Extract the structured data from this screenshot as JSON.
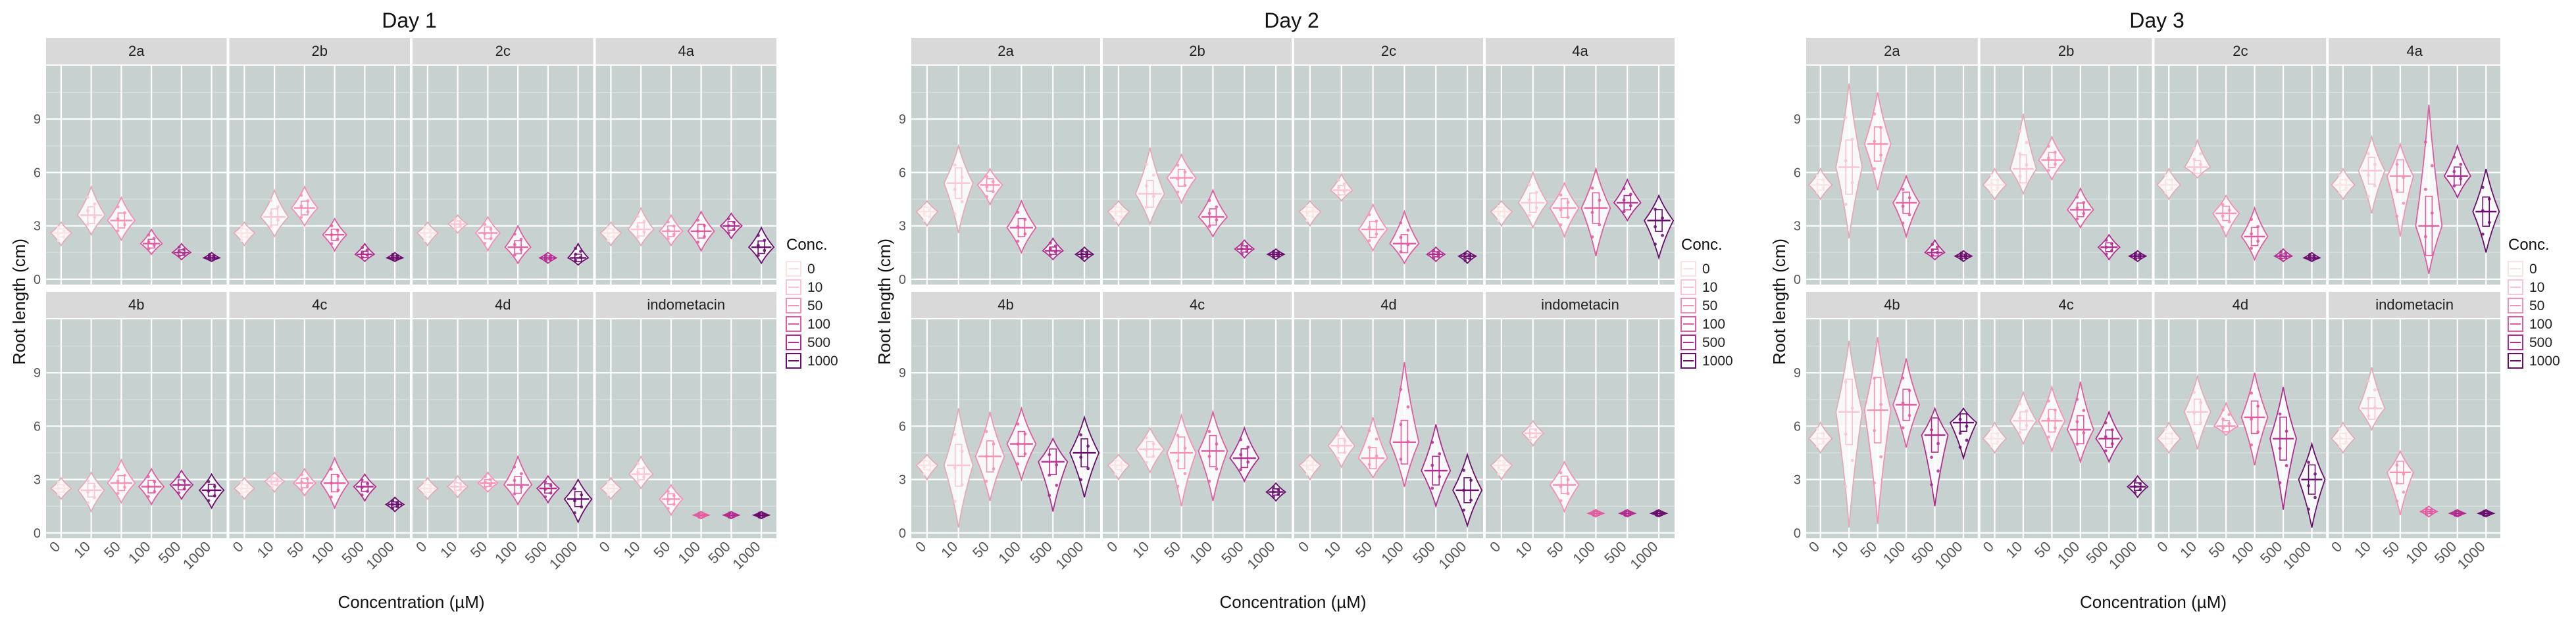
{
  "chart_data": [
    {
      "type": "violin",
      "title": "Day 1",
      "xlabel": "Concentration (µM)",
      "ylabel": "Root length (cm)",
      "ylim": [
        -0.3,
        12
      ],
      "yticks": [
        0,
        3,
        6,
        9
      ],
      "categories": [
        "0",
        "10",
        "50",
        "100",
        "500",
        "1000"
      ],
      "legend_title": "Conc.",
      "facets": [
        {
          "name": "2a",
          "medians": [
            2.6,
            3.6,
            3.3,
            2.0,
            1.5,
            1.2
          ],
          "spans": [
            [
              1.9,
              3.2
            ],
            [
              2.5,
              5.2
            ],
            [
              2.2,
              4.6
            ],
            [
              1.4,
              2.8
            ],
            [
              1.1,
              2.0
            ],
            [
              1.0,
              1.5
            ]
          ]
        },
        {
          "name": "2b",
          "medians": [
            2.6,
            3.5,
            4.0,
            2.5,
            1.4,
            1.2
          ],
          "spans": [
            [
              1.9,
              3.2
            ],
            [
              2.4,
              5.0
            ],
            [
              3.0,
              5.2
            ],
            [
              1.6,
              3.4
            ],
            [
              1.0,
              2.0
            ],
            [
              1.0,
              1.5
            ]
          ]
        },
        {
          "name": "2c",
          "medians": [
            2.6,
            3.1,
            2.6,
            1.8,
            1.2,
            1.2
          ],
          "spans": [
            [
              1.9,
              3.2
            ],
            [
              2.6,
              3.6
            ],
            [
              1.6,
              3.5
            ],
            [
              0.9,
              3.0
            ],
            [
              0.9,
              1.5
            ],
            [
              0.8,
              2.0
            ]
          ]
        },
        {
          "name": "4a",
          "medians": [
            2.6,
            2.8,
            2.7,
            2.7,
            3.0,
            1.8
          ],
          "spans": [
            [
              1.9,
              3.2
            ],
            [
              1.9,
              4.0
            ],
            [
              1.9,
              3.6
            ],
            [
              1.6,
              3.8
            ],
            [
              2.3,
              3.7
            ],
            [
              0.9,
              2.9
            ]
          ]
        },
        {
          "name": "4b",
          "medians": [
            2.5,
            2.4,
            2.8,
            2.6,
            2.7,
            2.4
          ],
          "spans": [
            [
              1.9,
              3.1
            ],
            [
              1.2,
              3.4
            ],
            [
              1.7,
              4.1
            ],
            [
              1.6,
              3.6
            ],
            [
              1.9,
              3.5
            ],
            [
              1.4,
              3.3
            ]
          ]
        },
        {
          "name": "4c",
          "medians": [
            2.5,
            2.9,
            2.8,
            2.8,
            2.6,
            1.6
          ],
          "spans": [
            [
              1.9,
              3.1
            ],
            [
              2.3,
              3.4
            ],
            [
              2.1,
              3.6
            ],
            [
              1.4,
              4.2
            ],
            [
              1.8,
              3.3
            ],
            [
              1.2,
              2.0
            ]
          ]
        },
        {
          "name": "4d",
          "medians": [
            2.5,
            2.6,
            2.8,
            2.7,
            2.5,
            1.9
          ],
          "spans": [
            [
              1.9,
              3.1
            ],
            [
              2.0,
              3.2
            ],
            [
              2.3,
              3.4
            ],
            [
              1.6,
              4.3
            ],
            [
              1.7,
              3.2
            ],
            [
              0.6,
              3.0
            ]
          ]
        },
        {
          "name": "indometacin",
          "medians": [
            2.5,
            3.3,
            1.9,
            1.0,
            1.0,
            1.0
          ],
          "spans": [
            [
              1.9,
              3.1
            ],
            [
              2.5,
              4.3
            ],
            [
              1.0,
              2.7
            ],
            [
              0.8,
              1.2
            ],
            [
              0.8,
              1.2
            ],
            [
              0.8,
              1.2
            ]
          ]
        }
      ]
    },
    {
      "type": "violin",
      "title": "Day 2",
      "xlabel": "Concentration (µM)",
      "ylabel": "Root length (cm)",
      "ylim": [
        -0.3,
        12
      ],
      "yticks": [
        0,
        3,
        6,
        9
      ],
      "categories": [
        "0",
        "10",
        "50",
        "100",
        "500",
        "1000"
      ],
      "legend_title": "Conc.",
      "facets": [
        {
          "name": "2a",
          "medians": [
            3.8,
            5.4,
            5.3,
            2.9,
            1.6,
            1.4
          ],
          "spans": [
            [
              3.0,
              4.4
            ],
            [
              2.6,
              7.5
            ],
            [
              4.2,
              6.2
            ],
            [
              1.5,
              4.4
            ],
            [
              1.1,
              2.3
            ],
            [
              1.0,
              1.8
            ]
          ]
        },
        {
          "name": "2b",
          "medians": [
            3.8,
            4.8,
            5.7,
            3.5,
            1.7,
            1.4
          ],
          "spans": [
            [
              3.0,
              4.4
            ],
            [
              3.1,
              7.4
            ],
            [
              4.3,
              7.0
            ],
            [
              2.4,
              5.0
            ],
            [
              1.2,
              2.2
            ],
            [
              1.1,
              1.7
            ]
          ]
        },
        {
          "name": "2c",
          "medians": [
            3.8,
            5.0,
            2.8,
            2.0,
            1.4,
            1.3
          ],
          "spans": [
            [
              3.0,
              4.4
            ],
            [
              4.4,
              5.9
            ],
            [
              1.6,
              4.2
            ],
            [
              0.9,
              3.8
            ],
            [
              1.0,
              1.8
            ],
            [
              0.9,
              1.6
            ]
          ]
        },
        {
          "name": "4a",
          "medians": [
            3.8,
            4.3,
            4.0,
            4.0,
            4.3,
            3.3
          ],
          "spans": [
            [
              3.0,
              4.4
            ],
            [
              2.9,
              6.0
            ],
            [
              2.4,
              5.4
            ],
            [
              1.3,
              6.2
            ],
            [
              3.3,
              5.6
            ],
            [
              1.2,
              4.7
            ]
          ]
        },
        {
          "name": "4b",
          "medians": [
            3.8,
            3.8,
            4.3,
            5.0,
            4.0,
            4.5
          ],
          "spans": [
            [
              3.0,
              4.4
            ],
            [
              0.3,
              7.0
            ],
            [
              1.8,
              6.8
            ],
            [
              3.0,
              7.0
            ],
            [
              1.2,
              5.3
            ],
            [
              2.0,
              6.5
            ]
          ]
        },
        {
          "name": "4c",
          "medians": [
            3.8,
            4.7,
            4.5,
            4.6,
            4.2,
            2.3
          ],
          "spans": [
            [
              3.0,
              4.4
            ],
            [
              3.4,
              5.9
            ],
            [
              1.5,
              6.6
            ],
            [
              1.8,
              6.8
            ],
            [
              2.9,
              5.9
            ],
            [
              1.8,
              2.8
            ]
          ]
        },
        {
          "name": "4d",
          "medians": [
            3.8,
            4.9,
            4.2,
            5.1,
            3.5,
            2.4
          ],
          "spans": [
            [
              3.0,
              4.4
            ],
            [
              3.7,
              6.0
            ],
            [
              3.1,
              6.5
            ],
            [
              2.6,
              9.6
            ],
            [
              1.5,
              6.1
            ],
            [
              0.4,
              4.4
            ]
          ]
        },
        {
          "name": "indometacin",
          "medians": [
            3.8,
            5.6,
            2.7,
            1.1,
            1.1,
            1.1
          ],
          "spans": [
            [
              3.0,
              4.4
            ],
            [
              4.9,
              6.3
            ],
            [
              1.2,
              4.0
            ],
            [
              0.9,
              1.3
            ],
            [
              0.9,
              1.3
            ],
            [
              0.9,
              1.3
            ]
          ]
        }
      ]
    },
    {
      "type": "violin",
      "title": "Day 3",
      "xlabel": "Concentration (µM)",
      "ylabel": "Root length (cm)",
      "ylim": [
        -0.3,
        12
      ],
      "yticks": [
        0,
        3,
        6,
        9
      ],
      "categories": [
        "0",
        "10",
        "50",
        "100",
        "500",
        "1000"
      ],
      "legend_title": "Conc.",
      "facets": [
        {
          "name": "2a",
          "medians": [
            5.3,
            6.3,
            7.6,
            4.3,
            1.5,
            1.3
          ],
          "spans": [
            [
              4.5,
              6.2
            ],
            [
              2.3,
              11.0
            ],
            [
              5.0,
              10.5
            ],
            [
              2.4,
              5.8
            ],
            [
              1.1,
              2.2
            ],
            [
              1.0,
              1.6
            ]
          ]
        },
        {
          "name": "2b",
          "medians": [
            5.3,
            6.2,
            6.7,
            3.9,
            1.8,
            1.3
          ],
          "spans": [
            [
              4.5,
              6.2
            ],
            [
              4.8,
              9.3
            ],
            [
              5.6,
              8.0
            ],
            [
              2.9,
              5.1
            ],
            [
              1.1,
              2.5
            ],
            [
              1.0,
              1.6
            ]
          ]
        },
        {
          "name": "2c",
          "medians": [
            5.3,
            6.3,
            3.7,
            2.4,
            1.3,
            1.2
          ],
          "spans": [
            [
              4.5,
              6.2
            ],
            [
              5.7,
              7.8
            ],
            [
              2.4,
              4.7
            ],
            [
              1.1,
              4.0
            ],
            [
              1.0,
              1.7
            ],
            [
              1.0,
              1.5
            ]
          ]
        },
        {
          "name": "4a",
          "medians": [
            5.3,
            6.1,
            5.8,
            3.0,
            5.8,
            3.8
          ],
          "spans": [
            [
              4.5,
              6.2
            ],
            [
              3.7,
              8.0
            ],
            [
              2.4,
              7.6
            ],
            [
              0.3,
              9.8
            ],
            [
              4.6,
              7.5
            ],
            [
              1.5,
              6.2
            ]
          ]
        },
        {
          "name": "4b",
          "medians": [
            5.3,
            6.8,
            6.9,
            7.2,
            5.5,
            6.2
          ],
          "spans": [
            [
              4.5,
              6.2
            ],
            [
              0.3,
              10.8
            ],
            [
              0.5,
              11.0
            ],
            [
              4.8,
              9.8
            ],
            [
              1.5,
              7.0
            ],
            [
              4.2,
              7.0
            ]
          ]
        },
        {
          "name": "4c",
          "medians": [
            5.3,
            6.3,
            6.3,
            5.8,
            5.3,
            2.6
          ],
          "spans": [
            [
              4.5,
              6.2
            ],
            [
              5.0,
              7.9
            ],
            [
              4.6,
              8.2
            ],
            [
              4.0,
              8.5
            ],
            [
              4.0,
              6.8
            ],
            [
              2.0,
              3.2
            ]
          ]
        },
        {
          "name": "4d",
          "medians": [
            5.3,
            6.8,
            6.0,
            6.5,
            5.3,
            3.0
          ],
          "spans": [
            [
              4.5,
              6.2
            ],
            [
              4.7,
              8.8
            ],
            [
              5.5,
              7.3
            ],
            [
              3.8,
              9.0
            ],
            [
              1.3,
              8.2
            ],
            [
              0.3,
              5.0
            ]
          ]
        },
        {
          "name": "indometacin",
          "medians": [
            5.3,
            7.0,
            3.4,
            1.2,
            1.1,
            1.1
          ],
          "spans": [
            [
              4.5,
              6.2
            ],
            [
              5.8,
              9.3
            ],
            [
              1.0,
              4.6
            ],
            [
              0.9,
              1.5
            ],
            [
              0.9,
              1.3
            ],
            [
              0.9,
              1.3
            ]
          ]
        }
      ]
    }
  ],
  "palette": [
    "#fde2e2",
    "#fbc4d4",
    "#f88fb5",
    "#e45ba0",
    "#b42b8f",
    "#6a0c6e"
  ],
  "background": {
    "panel": "#c7d2d0",
    "strip": "#d9d9d9"
  }
}
